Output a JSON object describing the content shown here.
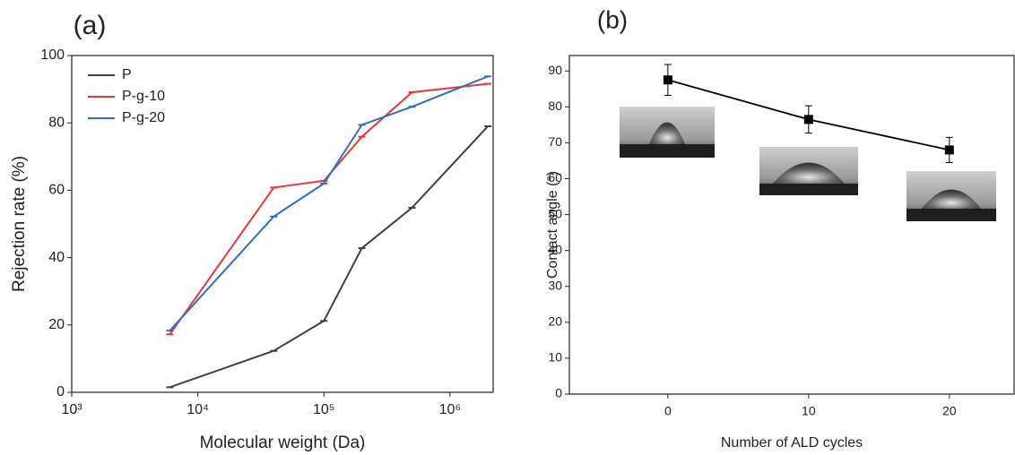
{
  "chart_data": [
    {
      "type": "line",
      "title": "(a)",
      "x_label": "Molecular weight (Da)",
      "y_label": "Rejection rate (%)",
      "log_x": true,
      "x": [
        6000,
        40000,
        100000,
        200000,
        500000,
        2000000
      ],
      "series": [
        {
          "name": "P",
          "color": "#404040",
          "values": [
            1.5,
            12.3,
            21.2,
            42.8,
            54.8,
            79
          ]
        },
        {
          "name": "P-g-10",
          "color": "#ee3535",
          "values": [
            17.2,
            60.8,
            62.8,
            75.9,
            89.1,
            91.6
          ]
        },
        {
          "name": "P-g-20",
          "color": "#2a6fc9",
          "values": [
            18.3,
            52.2,
            62,
            79.4,
            84.8,
            93.8
          ]
        }
      ],
      "xlim": [
        1000,
        2200000
      ],
      "xticks": [
        {
          "value": 1000,
          "label": "10³"
        },
        {
          "value": 10000,
          "label": "10⁴"
        },
        {
          "value": 100000,
          "label": "10⁵"
        },
        {
          "value": 1000000,
          "label": "10⁶"
        }
      ],
      "ylim": [
        0,
        100
      ],
      "yticks": [
        0,
        20,
        40,
        60,
        80,
        100
      ],
      "legend": "top-left"
    },
    {
      "type": "line",
      "title": "(b)",
      "x_label": "Number of ALD cycles",
      "y_label": "Contact angle (°)",
      "x": [
        0,
        10,
        20
      ],
      "series": [
        {
          "color": "#000000",
          "values": [
            87.5,
            76.5,
            68
          ],
          "errors": [
            4.3,
            3.8,
            3.5
          ]
        }
      ],
      "xlim": [
        -7,
        24.6
      ],
      "xticks": [
        0,
        10,
        20
      ],
      "ylim": [
        0,
        94.3
      ],
      "yticks": [
        0,
        10,
        20,
        30,
        40,
        50,
        60,
        70,
        80,
        90
      ]
    }
  ]
}
